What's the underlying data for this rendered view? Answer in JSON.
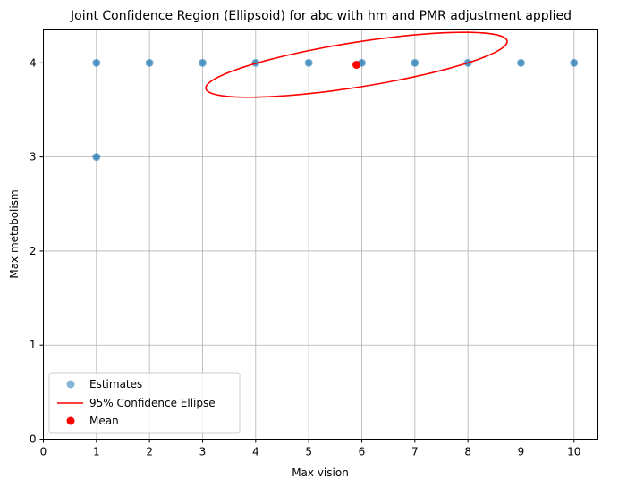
{
  "chart_data": {
    "type": "scatter",
    "title": "Joint Confidence Region (Ellipsoid) for abc with hm and PMR adjustment applied",
    "xlabel": "Max vision",
    "ylabel": "Max metabolism",
    "xlim": [
      0,
      10.45
    ],
    "ylim": [
      0,
      4.35
    ],
    "x_ticks": [
      0,
      1,
      2,
      3,
      4,
      5,
      6,
      7,
      8,
      9,
      10
    ],
    "y_ticks": [
      0,
      1,
      2,
      3,
      4
    ],
    "grid": true,
    "legend_position": "lower-left",
    "series": [
      {
        "name": "Estimates",
        "kind": "scatter",
        "color": "#1f77b4",
        "points": [
          {
            "x": 1,
            "y": 4
          },
          {
            "x": 1,
            "y": 3
          },
          {
            "x": 2,
            "y": 4
          },
          {
            "x": 3,
            "y": 4
          },
          {
            "x": 4,
            "y": 4
          },
          {
            "x": 5,
            "y": 4
          },
          {
            "x": 6,
            "y": 4
          },
          {
            "x": 7,
            "y": 4
          },
          {
            "x": 8,
            "y": 4
          },
          {
            "x": 9,
            "y": 4
          },
          {
            "x": 10,
            "y": 4
          }
        ]
      },
      {
        "name": "95% Confidence Ellipse",
        "kind": "ellipse",
        "color": "#ff0000",
        "center": {
          "x": 5.9,
          "y": 3.98
        },
        "semi_axis_major": 2.85,
        "semi_axis_minor": 0.24,
        "angle_deg": 5
      },
      {
        "name": "Mean",
        "kind": "point",
        "color": "#ff0000",
        "points": [
          {
            "x": 5.9,
            "y": 3.98
          }
        ]
      }
    ]
  }
}
